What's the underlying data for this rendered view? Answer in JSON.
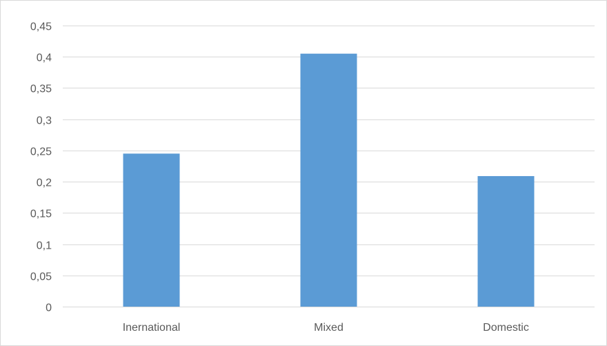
{
  "chart_data": {
    "type": "bar",
    "categories": [
      "Inernational",
      "Mixed",
      "Domestic"
    ],
    "values": [
      0.245,
      0.405,
      0.209
    ],
    "ylim": [
      0,
      0.45
    ],
    "yticks": [
      0,
      0.05,
      0.1,
      0.15,
      0.2,
      0.25,
      0.3,
      0.35,
      0.4,
      0.45
    ],
    "ytick_labels": [
      "0",
      "0,05",
      "0,1",
      "0,15",
      "0,2",
      "0,25",
      "0,3",
      "0,35",
      "0,4",
      "0,45"
    ],
    "title": "",
    "xlabel": "",
    "ylabel": "",
    "grid": true,
    "legend": false,
    "colors": {
      "bar": "#5b9bd5",
      "grid": "#d9d9d9",
      "text": "#595959"
    }
  }
}
